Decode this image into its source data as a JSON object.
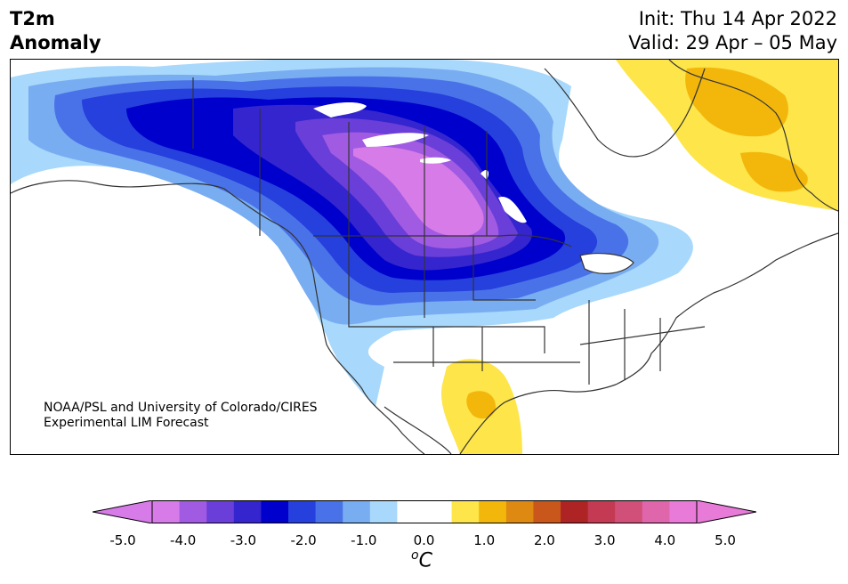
{
  "title": {
    "line1": "T2m",
    "line2": "Anomaly"
  },
  "forecast": {
    "init": "Init: Thu 14 Apr 2022",
    "valid": "Valid: 29 Apr – 05 May"
  },
  "credit": {
    "line1": "NOAA/PSL and University of Colorado/CIRES",
    "line2": "Experimental LIM Forecast"
  },
  "colorbar": {
    "colors": [
      "#d77be9",
      "#a15be2",
      "#6a3ed8",
      "#3525cf",
      "#0000cc",
      "#2540dd",
      "#4a72e8",
      "#78adf2",
      "#a8d8fb",
      "#ffffff",
      "#ffffff",
      "#fde54a",
      "#f3b70b",
      "#de8a12",
      "#c9561a",
      "#ae2424",
      "#c33a52",
      "#d1507a",
      "#df66aa",
      "#e87ad8"
    ],
    "extend_low": "#d77be9",
    "extend_high": "#e87ad8",
    "tick_labels": [
      "-5.0",
      "-4.0",
      "-3.0",
      "-2.0",
      "-1.0",
      "0.0",
      "1.0",
      "2.0",
      "3.0",
      "4.0",
      "5.0"
    ],
    "units_symbol": "o",
    "units_letter": "C"
  },
  "map": {
    "region": "North America",
    "features": [
      "coastlines",
      "state boundaries",
      "province boundaries"
    ],
    "anomaly_max_cold": -5.0,
    "anomaly_max_warm": 2.0
  }
}
